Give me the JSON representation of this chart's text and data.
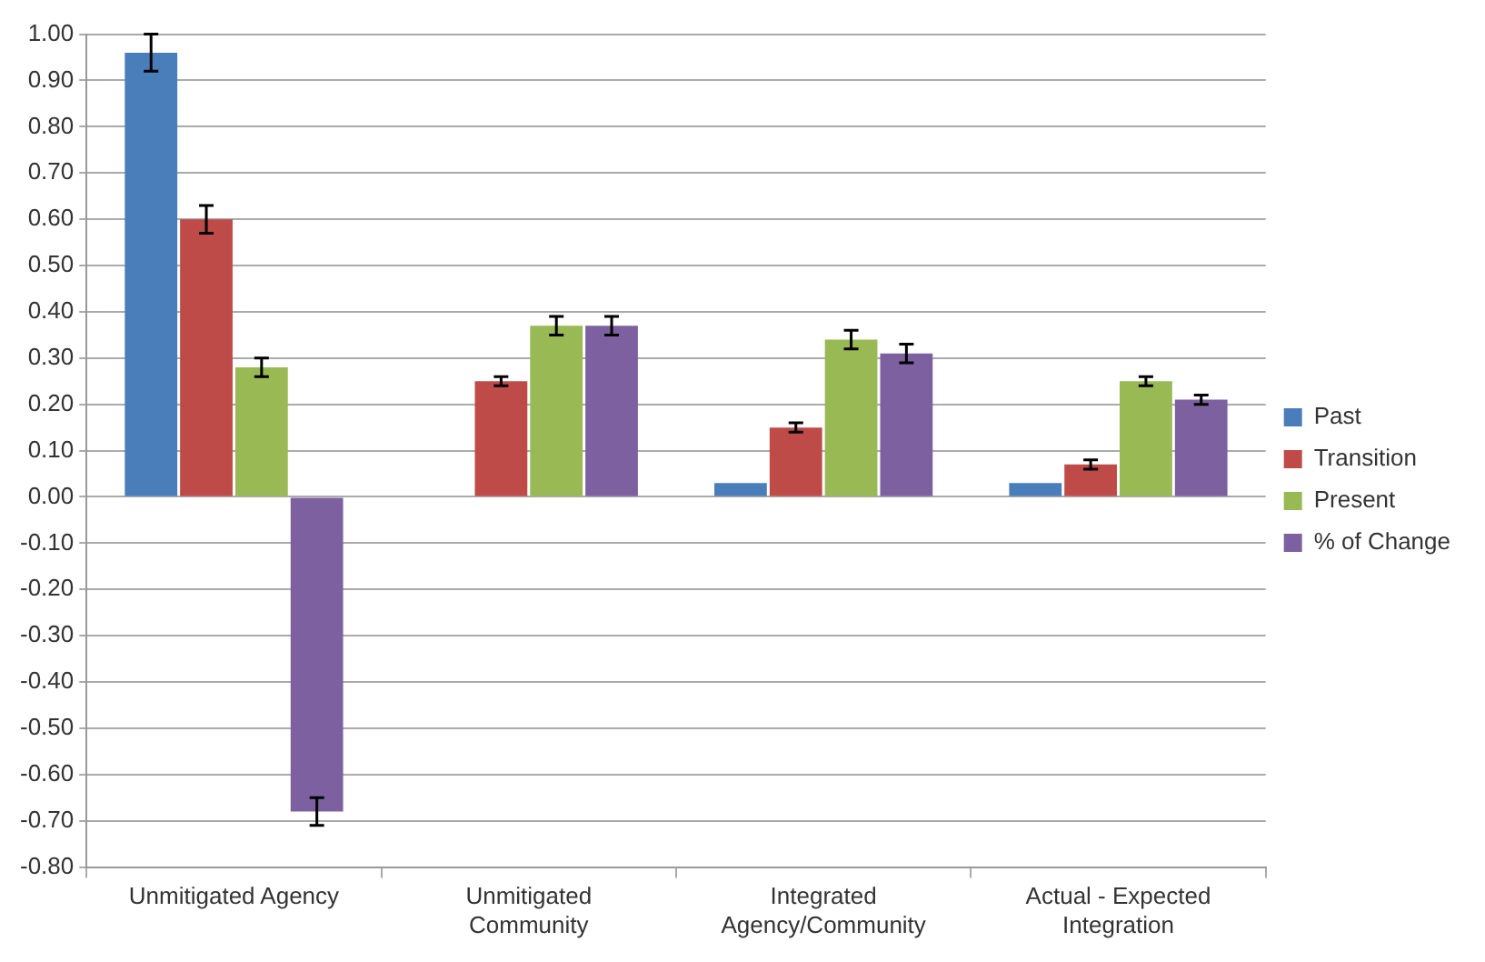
{
  "chart_data": {
    "type": "bar",
    "categories": [
      "Unmitigated Agency",
      "Unmitigated Community",
      "Integrated Agency/Community",
      "Actual - Expected Integration"
    ],
    "series": [
      {
        "name": "Past",
        "color": "#4a7ebb",
        "values": [
          0.96,
          null,
          0.03,
          0.03
        ],
        "errors": [
          0.04,
          null,
          null,
          null
        ]
      },
      {
        "name": "Transition",
        "color": "#be4b48",
        "values": [
          0.6,
          0.25,
          0.15,
          0.07
        ],
        "errors": [
          0.03,
          0.01,
          0.01,
          0.01
        ]
      },
      {
        "name": "Present",
        "color": "#98b954",
        "values": [
          0.28,
          0.37,
          0.34,
          0.25
        ],
        "errors": [
          0.02,
          0.02,
          0.02,
          0.01
        ]
      },
      {
        "name": "% of Change",
        "color": "#7d60a0",
        "values": [
          -0.68,
          0.37,
          0.31,
          0.21
        ],
        "errors": [
          0.03,
          0.02,
          0.02,
          0.01
        ]
      }
    ],
    "ylim": [
      -0.8,
      1.0
    ],
    "yticks": [
      {
        "value": -0.8,
        "label": "-0.80"
      },
      {
        "value": -0.7,
        "label": "-0.70"
      },
      {
        "value": -0.6,
        "label": "-0.60"
      },
      {
        "value": -0.5,
        "label": "-0.50"
      },
      {
        "value": -0.4,
        "label": "-0.40"
      },
      {
        "value": -0.3,
        "label": "-0.30"
      },
      {
        "value": -0.2,
        "label": "-0.20"
      },
      {
        "value": -0.1,
        "label": "-0.10"
      },
      {
        "value": 0,
        "label": "0.00"
      },
      {
        "value": 0.1,
        "label": "0.10"
      },
      {
        "value": 0.2,
        "label": "0.20"
      },
      {
        "value": 0.3,
        "label": "0.30"
      },
      {
        "value": 0.4,
        "label": "0.40"
      },
      {
        "value": 0.5,
        "label": "0.50"
      },
      {
        "value": 0.6,
        "label": "0.60"
      },
      {
        "value": 0.7,
        "label": "0.70"
      },
      {
        "value": 0.8,
        "label": "0.80"
      },
      {
        "value": 0.9,
        "label": "0.90"
      },
      {
        "value": 1.0,
        "label": "1.00"
      }
    ],
    "grid": "y",
    "legend": "right"
  }
}
